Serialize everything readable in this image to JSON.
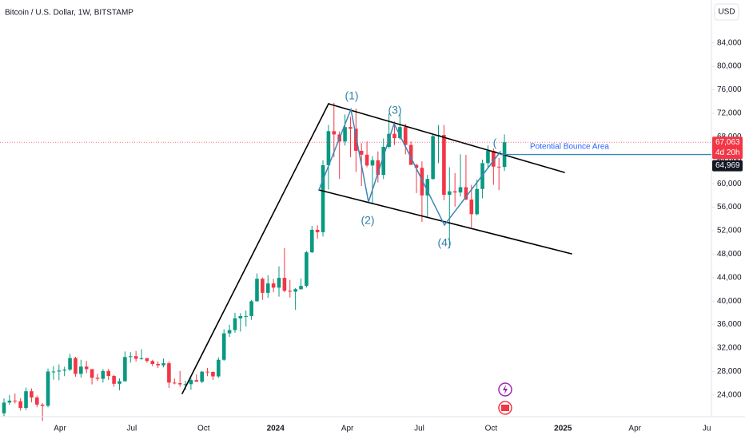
{
  "chart_data": {
    "type": "candlestick",
    "title": "Bitcoin / U.S. Dollar, 1W, BITSTAMP",
    "currency": "USD",
    "up_color": "#089981",
    "down_color": "#f23645",
    "ylim": [
      20300,
      91300
    ],
    "yticks": [
      {
        "value": 24000,
        "label": "24,000"
      },
      {
        "value": 28000,
        "label": "28,000"
      },
      {
        "value": 32000,
        "label": "32,000"
      },
      {
        "value": 36000,
        "label": "36,000"
      },
      {
        "value": 40000,
        "label": "40,000"
      },
      {
        "value": 44000,
        "label": "44,000"
      },
      {
        "value": 48000,
        "label": "48,000"
      },
      {
        "value": 52000,
        "label": "52,000"
      },
      {
        "value": 56000,
        "label": "56,000"
      },
      {
        "value": 60000,
        "label": "60,000"
      },
      {
        "value": 64000,
        "label": "64,000"
      },
      {
        "value": 68000,
        "label": "68,000"
      },
      {
        "value": 72000,
        "label": "72,000"
      },
      {
        "value": 76000,
        "label": "76,000"
      },
      {
        "value": 80000,
        "label": "80,000"
      },
      {
        "value": 84000,
        "label": "84,000"
      }
    ],
    "grid": false,
    "x_labels": [
      "Apr",
      "Jul",
      "Oct",
      "2024",
      "Apr",
      "Jul",
      "Oct",
      "2025",
      "Apr",
      "Ju"
    ],
    "candles": [
      [
        20880,
        23400,
        20400,
        22700
      ],
      [
        22700,
        23960,
        22300,
        23030
      ],
      [
        23030,
        24250,
        22540,
        22930
      ],
      [
        22930,
        23450,
        21350,
        21780
      ],
      [
        21780,
        25250,
        21400,
        24630
      ],
      [
        24630,
        25100,
        22750,
        23560
      ],
      [
        23560,
        23900,
        21900,
        22350
      ],
      [
        22350,
        22600,
        19550,
        22150
      ],
      [
        22150,
        28500,
        21900,
        27990
      ],
      [
        27990,
        28900,
        26600,
        27990
      ],
      [
        27990,
        29200,
        26500,
        28160
      ],
      [
        28160,
        28800,
        27200,
        28320
      ],
      [
        28320,
        31000,
        28100,
        30300
      ],
      [
        30300,
        30500,
        27100,
        27590
      ],
      [
        27590,
        30000,
        26950,
        28830
      ],
      [
        28830,
        29800,
        27700,
        28400
      ],
      [
        28400,
        28400,
        25800,
        26920
      ],
      [
        26920,
        27600,
        26350,
        26750
      ],
      [
        26750,
        28400,
        26100,
        28080
      ],
      [
        28080,
        28450,
        26550,
        27230
      ],
      [
        27230,
        27400,
        25400,
        25900
      ],
      [
        25900,
        26800,
        24800,
        26340
      ],
      [
        26340,
        31400,
        26250,
        30460
      ],
      [
        30460,
        31300,
        29500,
        30600
      ],
      [
        30600,
        31500,
        29700,
        30170
      ],
      [
        30170,
        31800,
        30000,
        30240
      ],
      [
        30240,
        30350,
        29500,
        29780
      ],
      [
        29780,
        30000,
        28900,
        29280
      ],
      [
        29280,
        29700,
        28600,
        29050
      ],
      [
        29050,
        30200,
        28700,
        29400
      ],
      [
        29400,
        29700,
        25200,
        26100
      ],
      [
        26100,
        26800,
        25800,
        26000
      ],
      [
        26000,
        28100,
        25400,
        25800
      ],
      [
        25800,
        26400,
        24900,
        25830
      ],
      [
        25830,
        26900,
        24900,
        26530
      ],
      [
        26530,
        27500,
        26400,
        26250
      ],
      [
        26250,
        28050,
        26000,
        27970
      ],
      [
        27970,
        28600,
        27200,
        27920
      ],
      [
        27920,
        28000,
        26550,
        27160
      ],
      [
        27160,
        30400,
        26900,
        29990
      ],
      [
        29990,
        35200,
        29800,
        34500
      ],
      [
        34500,
        35950,
        33900,
        35040
      ],
      [
        35040,
        38000,
        34600,
        37050
      ],
      [
        37050,
        37950,
        34800,
        37450
      ],
      [
        37450,
        38400,
        35650,
        37450
      ],
      [
        37450,
        40200,
        36800,
        39970
      ],
      [
        39970,
        44700,
        39900,
        43800
      ],
      [
        43800,
        44000,
        40200,
        41400
      ],
      [
        41400,
        44400,
        40550,
        43000
      ],
      [
        43000,
        43800,
        41500,
        42280
      ],
      [
        42280,
        45900,
        40750,
        43950
      ],
      [
        43950,
        49000,
        41500,
        41750
      ],
      [
        41750,
        43600,
        40600,
        41600
      ],
      [
        41600,
        42200,
        38500,
        42030
      ],
      [
        42030,
        43850,
        41900,
        42580
      ],
      [
        42580,
        48550,
        42300,
        48300
      ],
      [
        48300,
        52800,
        48200,
        52140
      ],
      [
        52140,
        52900,
        50600,
        51730
      ],
      [
        51730,
        64000,
        51000,
        63150
      ],
      [
        63150,
        70000,
        59000,
        68950
      ],
      [
        68950,
        73800,
        64500,
        68390
      ],
      [
        68390,
        68900,
        60800,
        67200
      ],
      [
        67200,
        71800,
        66500,
        69650
      ],
      [
        69650,
        71400,
        64500,
        69360
      ],
      [
        69360,
        72800,
        62000,
        65600
      ],
      [
        65600,
        66900,
        59600,
        64940
      ],
      [
        64940,
        67200,
        62800,
        63100
      ],
      [
        63100,
        64700,
        56500,
        64000
      ],
      [
        64000,
        65500,
        60200,
        61500
      ],
      [
        61500,
        67700,
        60800,
        66270
      ],
      [
        66270,
        71950,
        66000,
        68500
      ],
      [
        68500,
        70600,
        66600,
        67760
      ],
      [
        67760,
        71950,
        67500,
        69650
      ],
      [
        69650,
        70200,
        65000,
        66600
      ],
      [
        66600,
        67200,
        63300,
        63200
      ],
      [
        63200,
        63400,
        58400,
        62700
      ],
      [
        62700,
        63800,
        53500,
        58000
      ],
      [
        58000,
        61500,
        54300,
        60800
      ],
      [
        60800,
        68400,
        60700,
        68100
      ],
      [
        68100,
        70000,
        63500,
        68300
      ],
      [
        68300,
        70000,
        57200,
        58100
      ],
      [
        58100,
        62800,
        49000,
        58700
      ],
      [
        58700,
        61800,
        56100,
        58500
      ],
      [
        58500,
        65000,
        57800,
        59400
      ],
      [
        59400,
        64900,
        57200,
        57300
      ],
      [
        57300,
        59800,
        52550,
        54800
      ],
      [
        54800,
        60700,
        54600,
        59100
      ],
      [
        59100,
        64100,
        57500,
        63500
      ],
      [
        63500,
        66500,
        62700,
        65600
      ],
      [
        65600,
        66000,
        59800,
        62900
      ],
      [
        62900,
        64400,
        58900,
        62850
      ],
      [
        62850,
        68400,
        62200,
        67063
      ]
    ],
    "last_price": {
      "value": 67063,
      "label": "67,063"
    },
    "countdown": "4d 20h",
    "horizontal_line": {
      "value": 64969,
      "label": "64,969"
    },
    "wave_labels": [
      "(1)",
      "(2)",
      "(3)",
      "(4)",
      "("
    ],
    "annotation": "Potential Bounce Area"
  }
}
